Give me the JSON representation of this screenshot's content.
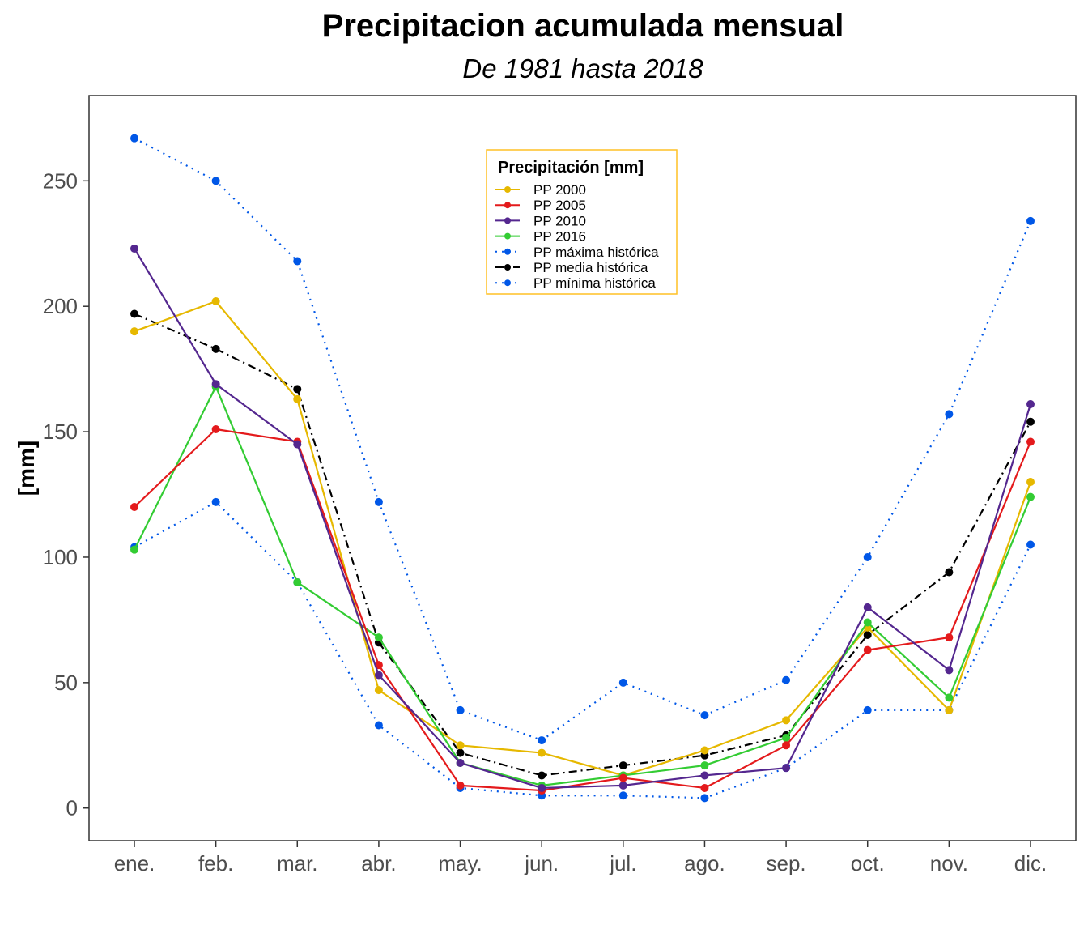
{
  "chart_data": {
    "type": "line",
    "title": "Precipitacion acumulada mensual",
    "subtitle": "De 1981 hasta 2018",
    "xlabel": "",
    "ylabel": "[mm]",
    "ylim": [
      -13,
      284
    ],
    "yticks": [
      0,
      50,
      100,
      150,
      200,
      250
    ],
    "ytick_labels": [
      "0",
      "50",
      "100",
      "150",
      "200",
      "250"
    ],
    "grid": false,
    "legend": {
      "title": "Precipitación [mm]",
      "position": "top-center"
    },
    "categories": [
      "ene.",
      "feb.",
      "mar.",
      "abr.",
      "may.",
      "jun.",
      "jul.",
      "ago.",
      "sep.",
      "oct.",
      "nov.",
      "dic."
    ],
    "series": [
      {
        "name": "PP 2000",
        "color": "#E6B800",
        "style": "solid",
        "values": [
          190,
          202,
          163,
          47,
          25,
          22,
          13,
          23,
          35,
          72,
          39,
          130
        ]
      },
      {
        "name": "PP 2005",
        "color": "#E41A1C",
        "style": "solid",
        "values": [
          120,
          151,
          146,
          57,
          9,
          7,
          12,
          8,
          25,
          63,
          68,
          146
        ]
      },
      {
        "name": "PP 2010",
        "color": "#54278F",
        "style": "solid",
        "values": [
          223,
          169,
          145,
          53,
          18,
          8,
          9,
          13,
          16,
          80,
          55,
          161
        ]
      },
      {
        "name": "PP 2016",
        "color": "#33CC33",
        "style": "solid",
        "values": [
          103,
          168,
          90,
          68,
          18,
          9,
          13,
          17,
          28,
          74,
          44,
          124
        ]
      },
      {
        "name": "PP máxima histórica",
        "color": "#0057E7",
        "style": "dotted",
        "values": [
          267,
          250,
          218,
          122,
          39,
          27,
          50,
          37,
          51,
          100,
          157,
          234
        ]
      },
      {
        "name": "PP media histórica",
        "color": "#000000",
        "style": "dashdot",
        "values": [
          197,
          183,
          167,
          66,
          22,
          13,
          17,
          21,
          29,
          69,
          94,
          154
        ]
      },
      {
        "name": "PP mínima histórica",
        "color": "#0057E7",
        "style": "dotted",
        "values": [
          104,
          122,
          90,
          33,
          8,
          5,
          5,
          4,
          16,
          39,
          39,
          105
        ]
      }
    ]
  }
}
